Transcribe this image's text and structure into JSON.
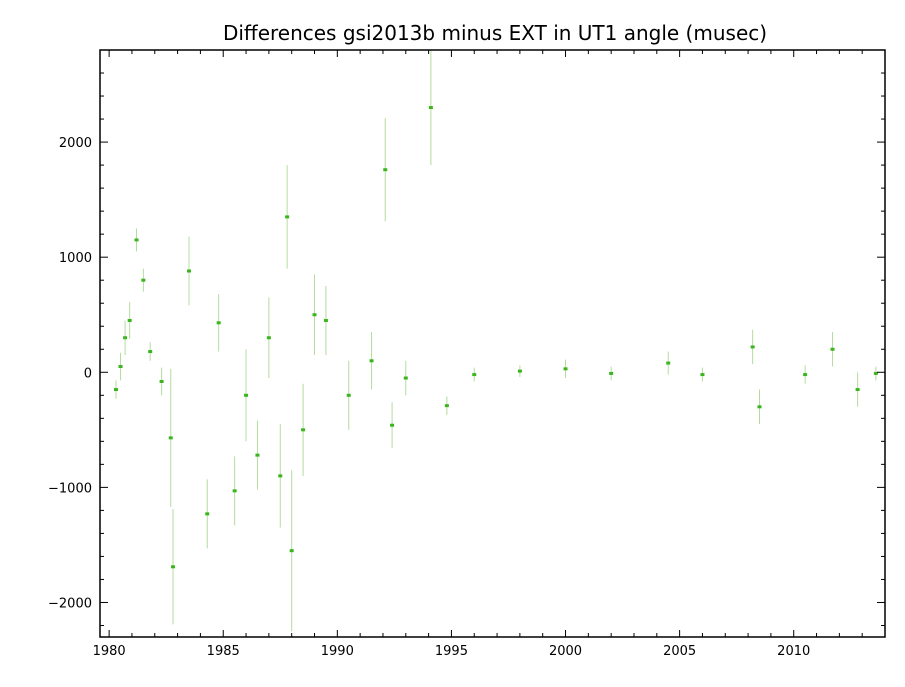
{
  "chart_data": {
    "type": "scatter",
    "title": "Differences gsi2013b minus EXT in UT1 angle   (musec)",
    "xlabel": "",
    "ylabel": "",
    "xlim": [
      1979.6,
      2014.0
    ],
    "ylim": [
      -2300,
      2800
    ],
    "x_ticks": [
      1980,
      1985,
      1990,
      1995,
      2000,
      2005,
      2010
    ],
    "x_tick_labels": [
      "1980",
      "1985",
      "1990",
      "1995",
      "2000",
      "2005",
      "2010"
    ],
    "y_ticks": [
      -2000,
      -1000,
      0,
      1000,
      2000
    ],
    "y_tick_labels": [
      "−2000",
      "−1000",
      "0",
      "1000",
      "2000"
    ],
    "grid": false,
    "legend": "none",
    "colors": {
      "points": "#3cb41e",
      "error_bars": "#b4dca0",
      "axes": "#000000"
    },
    "series": [
      {
        "points": [
          {
            "x": 1980.3,
            "y": -150,
            "err": 80
          },
          {
            "x": 1980.5,
            "y": 50,
            "err": 120
          },
          {
            "x": 1980.7,
            "y": 300,
            "err": 150
          },
          {
            "x": 1980.9,
            "y": 450,
            "err": 160
          },
          {
            "x": 1981.2,
            "y": 1150,
            "err": 100
          },
          {
            "x": 1981.5,
            "y": 800,
            "err": 100
          },
          {
            "x": 1981.8,
            "y": 180,
            "err": 80
          },
          {
            "x": 1982.3,
            "y": -80,
            "err": 120
          },
          {
            "x": 1982.7,
            "y": -570,
            "err": 600
          },
          {
            "x": 1982.8,
            "y": -1690,
            "err": 500
          },
          {
            "x": 1983.5,
            "y": 880,
            "err": 300
          },
          {
            "x": 1984.3,
            "y": -1230,
            "err": 300
          },
          {
            "x": 1984.8,
            "y": 430,
            "err": 250
          },
          {
            "x": 1985.5,
            "y": -1030,
            "err": 300
          },
          {
            "x": 1986.0,
            "y": -200,
            "err": 400
          },
          {
            "x": 1986.5,
            "y": -720,
            "err": 300
          },
          {
            "x": 1987.0,
            "y": 300,
            "err": 350
          },
          {
            "x": 1987.5,
            "y": -900,
            "err": 450
          },
          {
            "x": 1987.8,
            "y": 1350,
            "err": 450
          },
          {
            "x": 1988.0,
            "y": -1550,
            "err": 700
          },
          {
            "x": 1988.5,
            "y": -500,
            "err": 400
          },
          {
            "x": 1989.0,
            "y": 500,
            "err": 350
          },
          {
            "x": 1989.5,
            "y": 450,
            "err": 300
          },
          {
            "x": 1990.5,
            "y": -200,
            "err": 300
          },
          {
            "x": 1991.5,
            "y": 100,
            "err": 250
          },
          {
            "x": 1992.1,
            "y": 1760,
            "err": 450
          },
          {
            "x": 1992.4,
            "y": -460,
            "err": 200
          },
          {
            "x": 1993.0,
            "y": -50,
            "err": 150
          },
          {
            "x": 1994.1,
            "y": 2300,
            "err": 500
          },
          {
            "x": 1994.8,
            "y": -290,
            "err": 80
          },
          {
            "x": 1996.0,
            "y": -20,
            "err": 60
          },
          {
            "x": 1998.0,
            "y": 10,
            "err": 50
          },
          {
            "x": 2000.0,
            "y": 30,
            "err": 80
          },
          {
            "x": 2002.0,
            "y": -10,
            "err": 60
          },
          {
            "x": 2004.5,
            "y": 80,
            "err": 100
          },
          {
            "x": 2006.0,
            "y": -20,
            "err": 60
          },
          {
            "x": 2008.2,
            "y": 220,
            "err": 150
          },
          {
            "x": 2008.5,
            "y": -300,
            "err": 150
          },
          {
            "x": 2010.5,
            "y": -20,
            "err": 80
          },
          {
            "x": 2011.7,
            "y": 200,
            "err": 150
          },
          {
            "x": 2012.8,
            "y": -150,
            "err": 150
          },
          {
            "x": 2013.6,
            "y": -10,
            "err": 60
          }
        ]
      }
    ]
  }
}
